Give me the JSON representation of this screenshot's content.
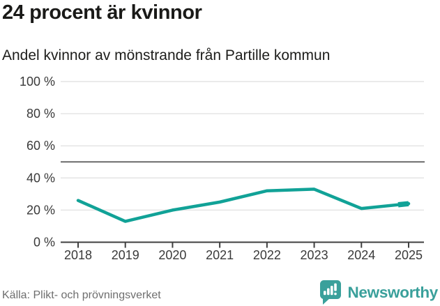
{
  "header": {
    "title": "24 procent är kvinnor",
    "subtitle": "Andel kvinnor av mönstrande från Partille kommun"
  },
  "chart_data": {
    "type": "line",
    "title": "24 procent är kvinnor",
    "subtitle": "Andel kvinnor av mönstrande från Partille kommun",
    "x": [
      2018,
      2019,
      2020,
      2021,
      2022,
      2023,
      2024,
      2025
    ],
    "xtick_labels": [
      "2018",
      "2019",
      "2020",
      "2021",
      "2022",
      "2023",
      "2024",
      "2025"
    ],
    "series": [
      {
        "name": "Andel kvinnor av mönstrande",
        "values": [
          26,
          13,
          20,
          25,
          32,
          33,
          21,
          24
        ]
      }
    ],
    "unit": "%",
    "ylim": [
      0,
      100
    ],
    "yticks": [
      0,
      20,
      40,
      60,
      80,
      100
    ],
    "ytick_labels": [
      "0 %",
      "20 %",
      "40 %",
      "60 %",
      "80 %",
      "100 %"
    ],
    "reference_line": 50,
    "grid": true,
    "legend": "none",
    "colors": {
      "line": "#11a297",
      "grid": "#e4e4e4",
      "axis": "#3f3f3f",
      "reference": "#6a6a6a",
      "tick_text": "#3a3a3a"
    }
  },
  "footer": {
    "source": "Källa: Plikt- och prövningsverket",
    "brand": "Newsworthy",
    "brand_color": "#3aa09b"
  }
}
